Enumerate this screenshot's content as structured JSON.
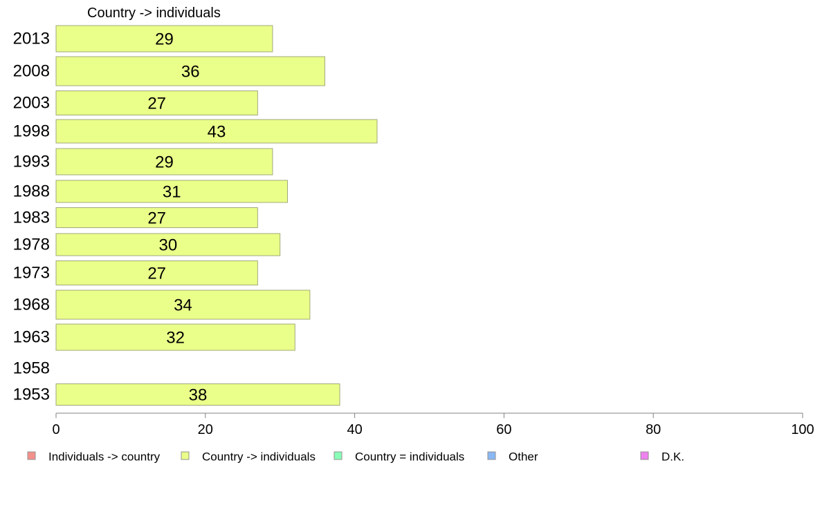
{
  "chart_data": {
    "type": "bar",
    "orientation": "horizontal",
    "series_title": "Country -> individuals",
    "categories": [
      "2013",
      "2008",
      "2003",
      "1998",
      "1993",
      "1988",
      "1983",
      "1978",
      "1973",
      "1968",
      "1963",
      "1958",
      "1953"
    ],
    "series": [
      {
        "name": "Country -> individuals",
        "color": "#eaff8a",
        "values": [
          29,
          36,
          27,
          43,
          29,
          31,
          27,
          30,
          27,
          34,
          32,
          null,
          38
        ],
        "labels": [
          "29",
          "36",
          "27",
          "43",
          "29",
          "31",
          "27",
          "30",
          "27",
          "34",
          "32",
          "",
          "38"
        ]
      }
    ],
    "xlim": [
      0,
      100
    ],
    "xticks": [
      "0",
      "20",
      "40",
      "60",
      "80",
      "100"
    ],
    "grid": false,
    "legend_position": "bottom",
    "legend": [
      {
        "label": "Individuals -> country",
        "color": "#f4908a"
      },
      {
        "label": "Country -> individuals",
        "color": "#eaff8a"
      },
      {
        "label": "Country = individuals",
        "color": "#8affb8"
      },
      {
        "label": "Other",
        "color": "#8ab8f4"
      },
      {
        "label": "D.K.",
        "color": "#ee82ee"
      }
    ]
  }
}
